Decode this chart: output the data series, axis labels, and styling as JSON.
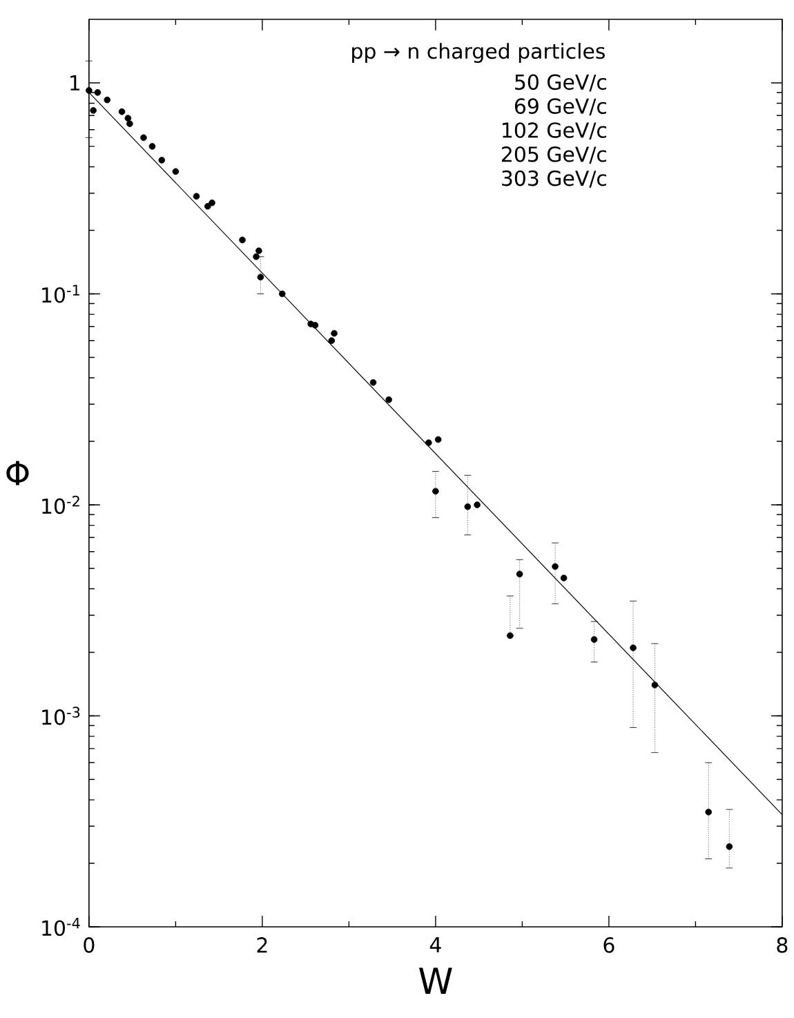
{
  "chart_data": {
    "type": "scatter",
    "xlabel": "W",
    "ylabel": "Φ",
    "annotations": [
      "pp → n  charged particles",
      "50 GeV/c",
      "69 GeV/c",
      "102 GeV/c",
      "205 GeV/c",
      "303 GeV/c"
    ],
    "log": "y",
    "xlim": [
      0,
      8
    ],
    "ylim": [
      0.0001,
      2
    ],
    "xticks": [
      0,
      2,
      4,
      6,
      8
    ],
    "yticks": [
      {
        "value": 0.0001,
        "label": "10$^{-4}$"
      },
      {
        "value": 0.001,
        "label": "10$^{-3}$"
      },
      {
        "value": 0.01,
        "label": "10$^{-2}$"
      },
      {
        "value": 0.1,
        "label": "10$^{-1}$"
      },
      1
    ],
    "grid": false,
    "series": [
      {
        "color": "#000000",
        "marker": "circle",
        "x": [
          0.0,
          0.1,
          0.05,
          0.21,
          0.38,
          0.45,
          0.47,
          0.63,
          0.73,
          0.84,
          1.0,
          1.24,
          1.37,
          1.42,
          1.77,
          1.96,
          1.93,
          1.98,
          2.23,
          2.56,
          2.61,
          2.8,
          2.83,
          3.28,
          3.46,
          3.92,
          4.03,
          4.0,
          4.37,
          4.48,
          4.97,
          4.86,
          5.38,
          5.48,
          5.83,
          6.28,
          6.53,
          7.15,
          7.39
        ],
        "values": [
          0.92,
          0.9,
          0.74,
          0.83,
          0.73,
          0.68,
          0.64,
          0.55,
          0.5,
          0.43,
          0.38,
          0.29,
          0.26,
          0.27,
          0.18,
          0.16,
          0.15,
          0.12,
          0.1,
          0.072,
          0.071,
          0.06,
          0.065,
          0.038,
          0.0315,
          0.0197,
          0.0204,
          0.0116,
          0.0098,
          0.01,
          0.0047,
          0.0024,
          0.0051,
          0.0045,
          0.0023,
          0.0021,
          0.0014,
          0.00035,
          0.00024
        ],
        "errors": [
          [
            0.55,
            1.27
          ],
          null,
          null,
          null,
          null,
          null,
          null,
          null,
          null,
          null,
          null,
          null,
          null,
          null,
          null,
          null,
          null,
          [
            0.1,
            0.15
          ],
          null,
          null,
          null,
          null,
          null,
          null,
          null,
          null,
          null,
          [
            0.0087,
            0.0144
          ],
          [
            0.0072,
            0.0138
          ],
          null,
          [
            0.0026,
            0.0055
          ],
          [
            0.0024,
            0.0037
          ],
          [
            0.0034,
            0.0066
          ],
          null,
          [
            0.0018,
            0.0028
          ],
          [
            0.00088,
            0.0035
          ],
          [
            0.00067,
            0.0022
          ],
          [
            0.00021,
            0.0006
          ],
          [
            0.00019,
            0.00036
          ]
        ]
      },
      {
        "type": "line",
        "color": "#000000",
        "line_style": "solid",
        "marker": "none",
        "x": [
          0,
          8
        ],
        "values": [
          0.9,
          0.00034
        ]
      }
    ]
  }
}
